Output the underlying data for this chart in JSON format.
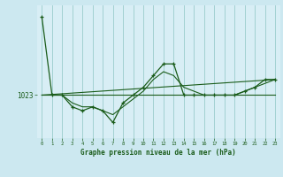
{
  "title": "Graphe pression niveau de la mer (hPa)",
  "background_color": "#cce8f0",
  "plot_bg_color": "#d8eef5",
  "line_color": "#1a5c1a",
  "grid_color": "#99cccc",
  "ylabel_value": 1023,
  "xlim": [
    -0.5,
    23.5
  ],
  "ylim": [
    1012,
    1046
  ],
  "xticks": [
    0,
    1,
    2,
    3,
    4,
    5,
    6,
    7,
    8,
    9,
    10,
    11,
    12,
    13,
    14,
    15,
    16,
    17,
    18,
    19,
    20,
    21,
    22,
    23
  ],
  "hours": [
    0,
    1,
    2,
    3,
    4,
    5,
    6,
    7,
    8,
    9,
    10,
    11,
    12,
    13,
    14,
    15,
    16,
    17,
    18,
    19,
    20,
    21,
    22,
    23
  ],
  "pressure": [
    1043,
    1023,
    1023,
    1020,
    1019,
    1020,
    1019,
    1016,
    1021,
    1023,
    1025,
    1028,
    1031,
    1031,
    1023,
    1023,
    1023,
    1023,
    1023,
    1023,
    1024,
    1025,
    1027,
    1027
  ],
  "trend_line_x": [
    0,
    23
  ],
  "trend_line_y": [
    1023,
    1027
  ],
  "avg_line_x": [
    0,
    23
  ],
  "avg_line_y": [
    1023,
    1023
  ],
  "smooth_line_x": [
    0,
    1,
    2,
    3,
    4,
    5,
    6,
    7,
    8,
    9,
    10,
    11,
    12,
    13,
    14,
    15,
    16,
    17,
    18,
    19,
    20,
    21,
    22,
    23
  ],
  "smooth_line_y": [
    1023,
    1023,
    1023,
    1021,
    1020,
    1020,
    1019,
    1018,
    1020,
    1022,
    1024,
    1027,
    1029,
    1028,
    1025,
    1024,
    1023,
    1023,
    1023,
    1023,
    1024,
    1025,
    1026,
    1027
  ]
}
